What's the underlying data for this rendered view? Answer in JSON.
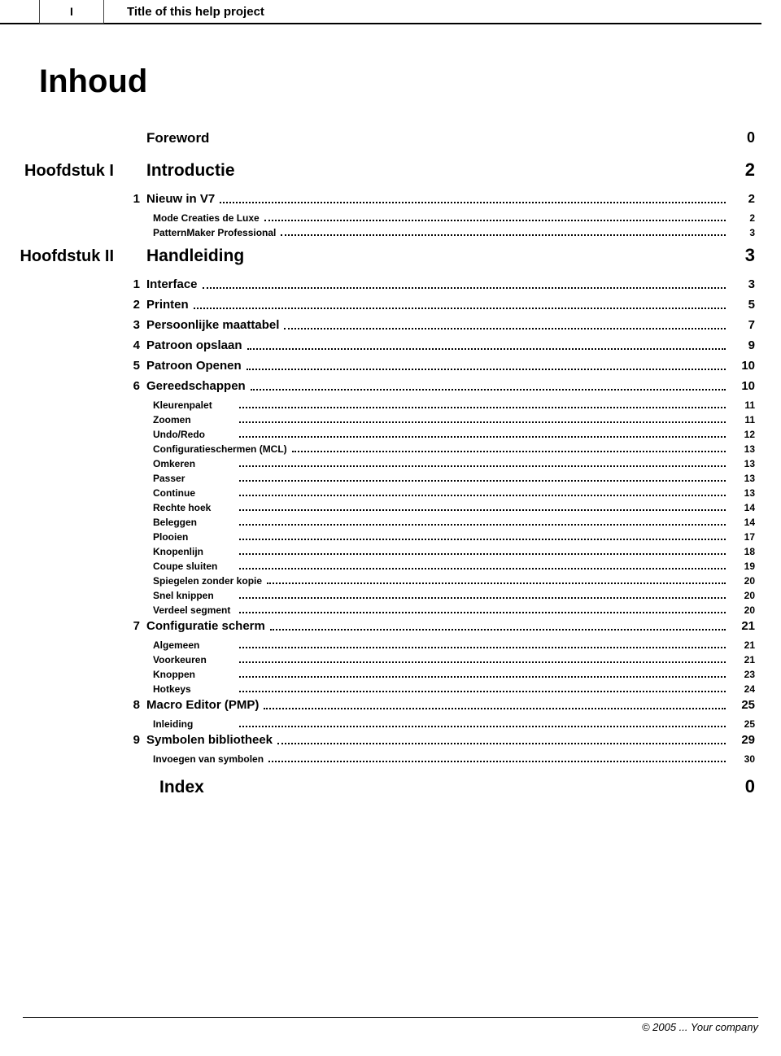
{
  "header": {
    "page_marker": "I",
    "title": "Title of this help project"
  },
  "toc_title": "Inhoud",
  "foreword": {
    "label": "Foreword",
    "page": "0"
  },
  "chapters": [
    {
      "chapter_label": "Hoofdstuk I",
      "title": "Introductie",
      "page": "2",
      "sections": [
        {
          "num": "1",
          "label": "Nieuw in V7",
          "page": "2",
          "subs": [
            {
              "label": "Mode Creaties de Luxe",
              "page": "2"
            },
            {
              "label": "PatternMaker Professional",
              "page": "3"
            }
          ]
        }
      ]
    },
    {
      "chapter_label": "Hoofdstuk II",
      "title": "Handleiding",
      "page": "3",
      "sections": [
        {
          "num": "1",
          "label": "Interface",
          "page": "3",
          "subs": []
        },
        {
          "num": "2",
          "label": "Printen",
          "page": "5",
          "subs": []
        },
        {
          "num": "3",
          "label": "Persoonlijke maattabel",
          "page": "7",
          "subs": []
        },
        {
          "num": "4",
          "label": "Patroon opslaan",
          "page": "9",
          "subs": []
        },
        {
          "num": "5",
          "label": "Patroon Openen",
          "page": "10",
          "subs": []
        },
        {
          "num": "6",
          "label": "Gereedschappen",
          "page": "10",
          "subs": [
            {
              "label": "Kleurenpalet",
              "page": "11"
            },
            {
              "label": "Zoomen",
              "page": "11"
            },
            {
              "label": "Undo/Redo",
              "page": "12"
            },
            {
              "label": "Configuratieschermen (MCL)",
              "page": "13"
            },
            {
              "label": "Omkeren",
              "page": "13"
            },
            {
              "label": "Passer",
              "page": "13"
            },
            {
              "label": "Continue",
              "page": "13"
            },
            {
              "label": "Rechte hoek",
              "page": "14"
            },
            {
              "label": "Beleggen",
              "page": "14"
            },
            {
              "label": "Plooien",
              "page": "17"
            },
            {
              "label": "Knopenlijn",
              "page": "18"
            },
            {
              "label": "Coupe sluiten",
              "page": "19"
            },
            {
              "label": "Spiegelen zonder kopie",
              "page": "20"
            },
            {
              "label": "Snel knippen",
              "page": "20"
            },
            {
              "label": "Verdeel segment",
              "page": "20"
            }
          ]
        },
        {
          "num": "7",
          "label": "Configuratie scherm",
          "page": "21",
          "subs": [
            {
              "label": "Algemeen",
              "page": "21"
            },
            {
              "label": "Voorkeuren",
              "page": "21"
            },
            {
              "label": "Knoppen",
              "page": "23"
            },
            {
              "label": "Hotkeys",
              "page": "24"
            }
          ]
        },
        {
          "num": "8",
          "label": "Macro Editor (PMP)",
          "page": "25",
          "subs": [
            {
              "label": "Inleiding",
              "page": "25"
            }
          ]
        },
        {
          "num": "9",
          "label": "Symbolen bibliotheek",
          "page": "29",
          "subs": [
            {
              "label": "Invoegen van symbolen",
              "page": "30"
            }
          ]
        }
      ]
    }
  ],
  "index": {
    "label": "Index",
    "page": "0"
  },
  "footer": "© 2005 ... Your company"
}
